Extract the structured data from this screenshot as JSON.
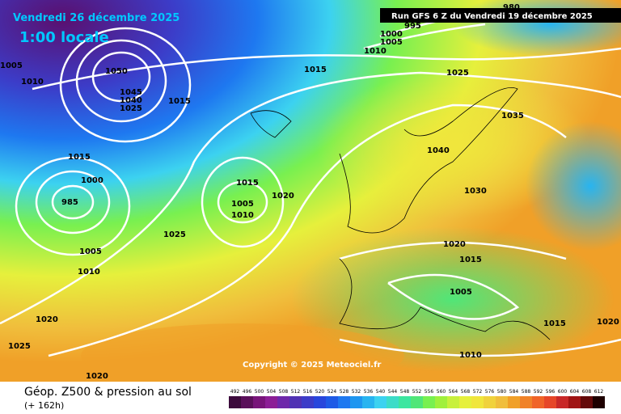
{
  "header": {
    "date": "Vendredi 26 décembre 2025",
    "time": "1:00 locale",
    "run": "Run GFS 6 Z du Vendredi 19 décembre 2025"
  },
  "footer": {
    "title": "Géop. Z500 & pression au sol",
    "lead": "(+ 162h)",
    "copyright": "Copyright © 2025 Meteociel.fr"
  },
  "isobar_labels": [
    "1005",
    "1010",
    "1050",
    "1045",
    "1040",
    "1025",
    "1015",
    "1015",
    "995",
    "1000",
    "1005",
    "1010",
    "1025",
    "1035",
    "1040",
    "1030",
    "1015",
    "1000",
    "985",
    "1015",
    "1020",
    "1005",
    "1010",
    "1025",
    "1005",
    "1010",
    "1020",
    "1015",
    "1005",
    "1020",
    "1025",
    "1015",
    "1020",
    "1010",
    "1020",
    "980"
  ],
  "legend": {
    "labels": [
      492,
      496,
      500,
      504,
      508,
      512,
      516,
      520,
      524,
      528,
      532,
      536,
      540,
      544,
      548,
      552,
      556,
      560,
      564,
      568,
      572,
      576,
      580,
      584,
      588,
      592,
      596,
      600,
      604,
      608,
      612
    ],
    "colors": [
      "#3c0a3c",
      "#5a0f5a",
      "#78147a",
      "#8c1e96",
      "#6e28aa",
      "#5032b4",
      "#3c3cc8",
      "#2846dc",
      "#1e5ae6",
      "#1e78f0",
      "#1e96f0",
      "#28b4f0",
      "#3cd2f0",
      "#3cdcc8",
      "#3ce6a0",
      "#50e678",
      "#78f050",
      "#a0f03c",
      "#c8f03c",
      "#e6f03c",
      "#f0e63c",
      "#f0d23c",
      "#f0be3c",
      "#f0a028",
      "#f08228",
      "#f06428",
      "#e64628",
      "#c82828",
      "#a01414",
      "#640a0a",
      "#1e0000"
    ]
  }
}
